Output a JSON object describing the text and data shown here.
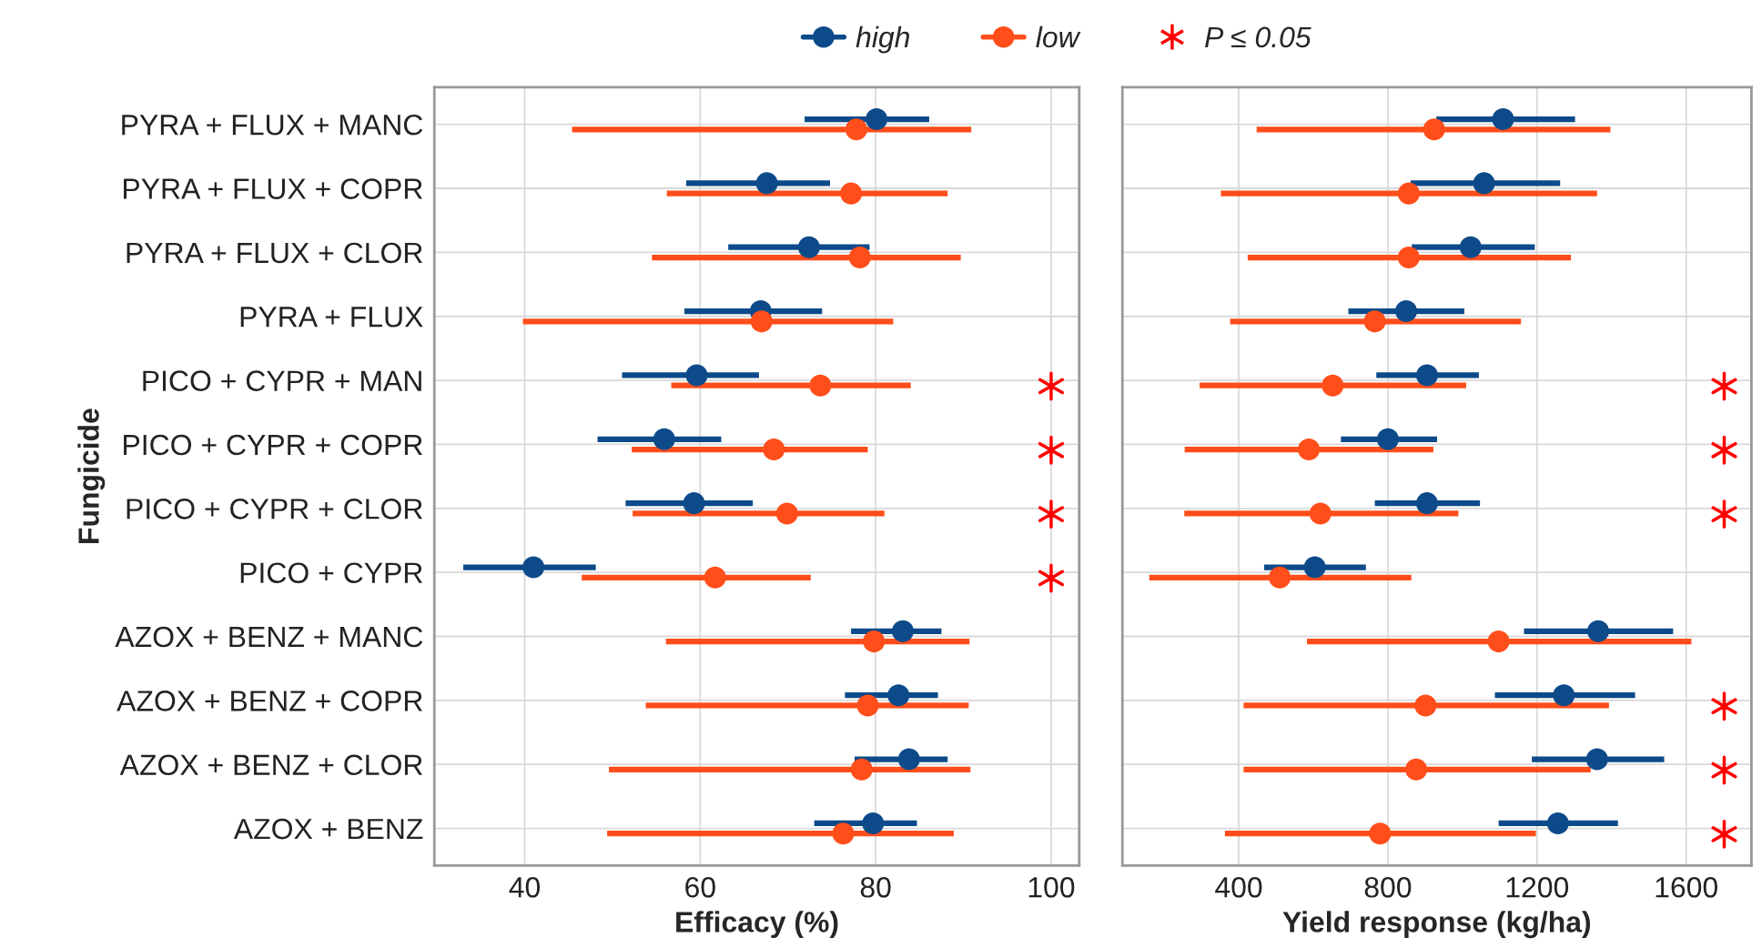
{
  "chart_data": [
    {
      "type": "scatter",
      "orientation": "horizontal",
      "xlabel": "Efficacy (%)",
      "ylabel": "Fungicide",
      "categories": [
        "PYRA + FLUX + MANC",
        "PYRA + FLUX + COPR",
        "PYRA + FLUX + CLOR",
        "PYRA + FLUX",
        "PICO + CYPR + MAN",
        "PICO + CYPR + COPR",
        "PICO + CYPR + CLOR",
        "PICO + CYPR",
        "AZOX + BENZ + MANC",
        "AZOX + BENZ + COPR",
        "AZOX + BENZ + CLOR",
        "AZOX + BENZ"
      ],
      "xlim": [
        29.7,
        103.2
      ],
      "xticks": [
        40,
        60,
        80,
        100
      ],
      "grid": true,
      "legend": "top",
      "marker": "circle",
      "series": [
        {
          "name": "high",
          "color": "#0d4a8a",
          "values": [
            80.1,
            67.6,
            72.4,
            66.9,
            59.6,
            55.9,
            59.3,
            41.0,
            83.1,
            82.6,
            83.8,
            79.7
          ],
          "errors": [
            [
              71.9,
              86.1
            ],
            [
              58.4,
              74.8
            ],
            [
              63.2,
              79.3
            ],
            [
              58.2,
              73.9
            ],
            [
              51.1,
              66.7
            ],
            [
              48.3,
              62.4
            ],
            [
              51.5,
              66.0
            ],
            [
              33.0,
              48.1
            ],
            [
              77.2,
              87.5
            ],
            [
              76.5,
              87.1
            ],
            [
              77.6,
              88.2
            ],
            [
              73.0,
              84.7
            ]
          ]
        },
        {
          "name": "low",
          "color": "#ff4e1a",
          "values": [
            77.8,
            77.2,
            78.2,
            67.0,
            73.7,
            68.4,
            69.9,
            61.7,
            79.8,
            79.1,
            78.4,
            76.3
          ],
          "errors": [
            [
              45.4,
              90.9
            ],
            [
              56.2,
              88.2
            ],
            [
              54.5,
              89.7
            ],
            [
              39.8,
              82.0
            ],
            [
              56.7,
              84.0
            ],
            [
              52.2,
              79.1
            ],
            [
              52.3,
              81.0
            ],
            [
              46.5,
              72.6
            ],
            [
              56.1,
              90.7
            ],
            [
              53.8,
              90.6
            ],
            [
              49.6,
              90.8
            ],
            [
              49.4,
              88.9
            ]
          ]
        },
        {
          "name": "P ≤ 0.05",
          "color": "#ff0000",
          "marker": "cross",
          "values": [
            null,
            null,
            null,
            null,
            100,
            100,
            100,
            100,
            null,
            null,
            null,
            null
          ]
        }
      ]
    },
    {
      "type": "scatter",
      "orientation": "horizontal",
      "xlabel": "Yield response (kg/ha)",
      "tick_labels": "x",
      "categories": [
        null,
        null,
        null,
        null,
        null,
        null,
        null,
        null,
        null,
        null,
        null,
        null
      ],
      "xlim": [
        88,
        1775
      ],
      "xticks": [
        400,
        800,
        1200,
        1600
      ],
      "grid": true,
      "marker": "circle",
      "series": [
        {
          "color": "#0d4a8a",
          "values": [
            1109,
            1058,
            1022,
            849,
            905,
            800,
            905,
            604,
            1364,
            1272,
            1361,
            1256
          ],
          "errors": [
            [
              930,
              1302
            ],
            [
              861,
              1262
            ],
            [
              864,
              1194
            ],
            [
              694,
              1005
            ],
            [
              769,
              1044
            ],
            [
              674,
              932
            ],
            [
              765,
              1047
            ],
            [
              468,
              741
            ],
            [
              1165,
              1565
            ],
            [
              1087,
              1463
            ],
            [
              1186,
              1541
            ],
            [
              1097,
              1417
            ]
          ]
        },
        {
          "color": "#ff4e1a",
          "values": [
            924,
            856,
            856,
            765,
            652,
            588,
            619,
            510,
            1097,
            901,
            876,
            779
          ],
          "errors": [
            [
              448,
              1397
            ],
            [
              352,
              1361
            ],
            [
              424,
              1291
            ],
            [
              377,
              1157
            ],
            [
              295,
              1010
            ],
            [
              255,
              922
            ],
            [
              254,
              989
            ],
            [
              160,
              863
            ],
            [
              583,
              1614
            ],
            [
              413,
              1393
            ],
            [
              413,
              1344
            ],
            [
              363,
              1197
            ]
          ]
        },
        {
          "color": "#ff0000",
          "marker": "cross",
          "values": [
            null,
            null,
            null,
            null,
            1702,
            1702,
            1702,
            null,
            null,
            1702,
            1702,
            1702
          ]
        }
      ]
    }
  ]
}
